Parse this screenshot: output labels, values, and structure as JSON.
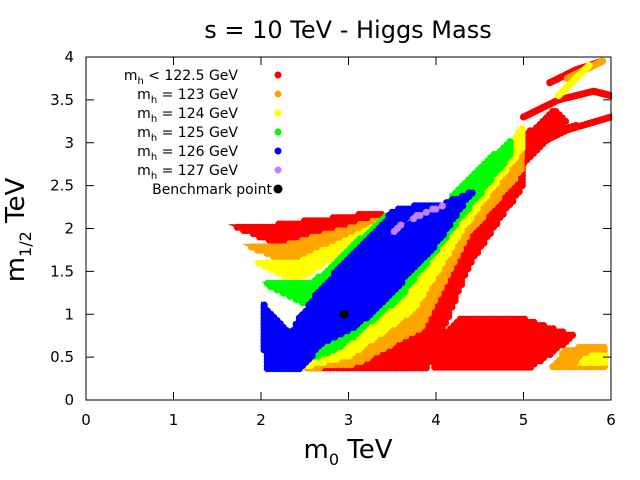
{
  "chart_data": {
    "type": "scatter",
    "title": "s = 10 TeV - Higgs Mass",
    "xlabel": {
      "main": "m",
      "sub": "0",
      "unit": " TeV"
    },
    "ylabel": {
      "main": "m",
      "sub": "1/2",
      "unit": " TeV"
    },
    "xlim": [
      0,
      6
    ],
    "ylim": [
      0,
      4
    ],
    "xticks": [
      0,
      1,
      2,
      3,
      4,
      5,
      6
    ],
    "yticks": [
      0,
      0.5,
      1,
      1.5,
      2,
      2.5,
      3,
      3.5,
      4
    ],
    "xtick_labels": [
      "0",
      "1",
      "2",
      "3",
      "4",
      "5",
      "6"
    ],
    "ytick_labels": [
      "0",
      "0.5",
      "1",
      "1.5",
      "2",
      "2.5",
      "3",
      "3.5",
      "4"
    ],
    "legend_position": "top-left",
    "series": [
      {
        "name": "m_h < 122.5 GeV",
        "label_main": "m",
        "label_sub": "h",
        "label_rest": " < 122.5 GeV",
        "color": "#ff0000",
        "regions": [
          {
            "kind": "band",
            "x": [
              1.62,
              2.18,
              3.4
            ],
            "y_lower": [
              2.05,
              1.82,
              2.12
            ],
            "y_upper": [
              2.05,
              2.05,
              2.2
            ]
          },
          {
            "kind": "band",
            "x": [
              2.5,
              3.2,
              3.9,
              4.4,
              5.0
            ],
            "y_lower": [
              0.35,
              0.35,
              0.35,
              1.6,
              2.5
            ],
            "y_upper": [
              0.35,
              0.7,
              1.3,
              2.2,
              3.1
            ]
          },
          {
            "kind": "polygon",
            "points": [
              [
                3.55,
                0.38
              ],
              [
                3.86,
                0.38
              ],
              [
                3.86,
                0.95
              ],
              [
                3.55,
                0.95
              ]
            ]
          },
          {
            "kind": "polygon",
            "points": [
              [
                3.0,
                0.35
              ],
              [
                3.55,
                0.35
              ],
              [
                3.55,
                0.9
              ],
              [
                3.3,
                0.85
              ],
              [
                3.0,
                0.6
              ]
            ]
          },
          {
            "kind": "polygon",
            "points": [
              [
                3.95,
                0.38
              ],
              [
                5.1,
                0.38
              ],
              [
                5.6,
                0.75
              ],
              [
                5.0,
                0.95
              ],
              [
                4.3,
                0.98
              ],
              [
                4.0,
                0.7
              ]
            ]
          },
          {
            "kind": "polygon",
            "points": [
              [
                4.35,
                2.05
              ],
              [
                5.5,
                3.25
              ],
              [
                5.35,
                3.4
              ],
              [
                4.2,
                2.3
              ]
            ]
          }
        ],
        "arcs": [
          {
            "x": [
              4.05,
              4.6,
              5.1,
              5.6
            ],
            "y": [
              2.2,
              2.75,
              3.05,
              3.2
            ]
          },
          {
            "x": [
              4.5,
              5.0,
              5.5,
              6.0
            ],
            "y": [
              2.5,
              2.9,
              3.15,
              3.3
            ]
          },
          {
            "x": [
              5.0,
              5.4,
              5.8,
              6.0
            ],
            "y": [
              3.3,
              3.5,
              3.6,
              3.55
            ]
          },
          {
            "x": [
              5.3,
              5.6,
              5.9
            ],
            "y": [
              3.7,
              3.85,
              3.95
            ]
          }
        ]
      },
      {
        "name": "m_h = 123 GeV",
        "label_main": "m",
        "label_sub": "h",
        "label_rest": " = 123 GeV",
        "color": "#ffa500",
        "regions": [
          {
            "kind": "band",
            "x": [
              1.78,
              2.3,
              3.4
            ],
            "y_lower": [
              1.82,
              1.6,
              2.08
            ],
            "y_upper": [
              1.82,
              1.82,
              2.12
            ]
          },
          {
            "kind": "band",
            "x": [
              2.45,
              3.1,
              3.85,
              4.35,
              5.0
            ],
            "y_lower": [
              0.35,
              0.42,
              0.85,
              1.9,
              2.7
            ],
            "y_upper": [
              0.35,
              0.7,
              1.3,
              2.2,
              3.1
            ]
          },
          {
            "kind": "polygon",
            "points": [
              [
                5.3,
                0.38
              ],
              [
                5.95,
                0.38
              ],
              [
                5.95,
                0.65
              ],
              [
                5.5,
                0.6
              ]
            ]
          }
        ],
        "arcs": [
          {
            "x": [
              5.5,
              5.7,
              5.9
            ],
            "y": [
              3.75,
              3.85,
              3.95
            ]
          }
        ]
      },
      {
        "name": "m_h = 124 GeV",
        "label_main": "m",
        "label_sub": "h",
        "label_rest": " = 124 GeV",
        "color": "#ffff00",
        "regions": [
          {
            "kind": "band",
            "x": [
              1.9,
              2.4,
              3.4
            ],
            "y_lower": [
              1.62,
              1.38,
              2.02
            ],
            "y_upper": [
              1.62,
              1.6,
              2.08
            ]
          },
          {
            "kind": "band",
            "x": [
              2.35,
              3.0,
              3.75,
              4.35,
              5.0
            ],
            "y_lower": [
              0.35,
              0.5,
              1.05,
              2.05,
              2.95
            ],
            "y_upper": [
              0.35,
              0.85,
              1.45,
              2.35,
              3.2
            ]
          },
          {
            "kind": "polygon",
            "points": [
              [
                5.6,
                0.4
              ],
              [
                5.95,
                0.42
              ],
              [
                5.95,
                0.55
              ],
              [
                5.7,
                0.5
              ]
            ]
          }
        ],
        "arcs": [
          {
            "x": [
              5.4,
              5.6,
              5.75
            ],
            "y": [
              3.55,
              3.75,
              3.9
            ]
          }
        ]
      },
      {
        "name": "m_h = 125 GeV",
        "label_main": "m",
        "label_sub": "h",
        "label_rest": " = 125 GeV",
        "color": "#00ff00",
        "regions": [
          {
            "kind": "band",
            "x": [
              2.0,
              2.6,
              3.45
            ],
            "y_lower": [
              1.38,
              1.05,
              1.88
            ],
            "y_upper": [
              1.38,
              1.38,
              2.18
            ]
          },
          {
            "kind": "band",
            "x": [
              2.25,
              2.9,
              3.6,
              4.2,
              4.85
            ],
            "y_lower": [
              0.35,
              0.6,
              1.2,
              2.0,
              2.85
            ],
            "y_upper": [
              0.35,
              0.95,
              1.6,
              2.4,
              3.05
            ]
          }
        ],
        "arcs": []
      },
      {
        "name": "m_h = 126 GeV",
        "label_main": "m",
        "label_sub": "h",
        "label_rest": " = 126 GeV",
        "color": "#0000ff",
        "regions": [
          {
            "kind": "polygon",
            "points": [
              [
                2.0,
                1.15
              ],
              [
                2.3,
                0.8
              ],
              [
                2.7,
                0.65
              ],
              [
                3.1,
                0.85
              ],
              [
                3.55,
                1.3
              ],
              [
                4.0,
                1.8
              ],
              [
                4.3,
                2.25
              ],
              [
                4.45,
                2.45
              ],
              [
                4.1,
                2.3
              ],
              [
                3.6,
                2.25
              ],
              [
                3.5,
                2.2
              ],
              [
                3.2,
                1.85
              ],
              [
                2.9,
                1.55
              ],
              [
                2.6,
                1.2
              ],
              [
                2.4,
                0.9
              ],
              [
                2.2,
                0.55
              ],
              [
                2.05,
                0.35
              ]
            ]
          },
          {
            "kind": "polygon",
            "points": [
              [
                2.05,
                0.35
              ],
              [
                2.45,
                0.35
              ],
              [
                2.7,
                0.65
              ],
              [
                2.3,
                0.8
              ],
              [
                2.0,
                1.15
              ]
            ]
          }
        ],
        "arcs": []
      },
      {
        "name": "m_h = 127 GeV",
        "label_main": "m",
        "label_sub": "h",
        "label_rest": " = 127 GeV",
        "color": "#c080ff",
        "regions": [
          {
            "kind": "polygon",
            "points": [
              [
                3.45,
                1.9
              ],
              [
                3.75,
                2.15
              ],
              [
                4.15,
                2.3
              ],
              [
                4.45,
                2.45
              ],
              [
                4.25,
                2.35
              ],
              [
                3.95,
                2.2
              ],
              [
                3.6,
                2.05
              ]
            ]
          }
        ],
        "arcs": []
      }
    ],
    "benchmark": {
      "name": "Benchmark point",
      "x": 2.95,
      "y": 1.0,
      "color": "#000000"
    }
  }
}
